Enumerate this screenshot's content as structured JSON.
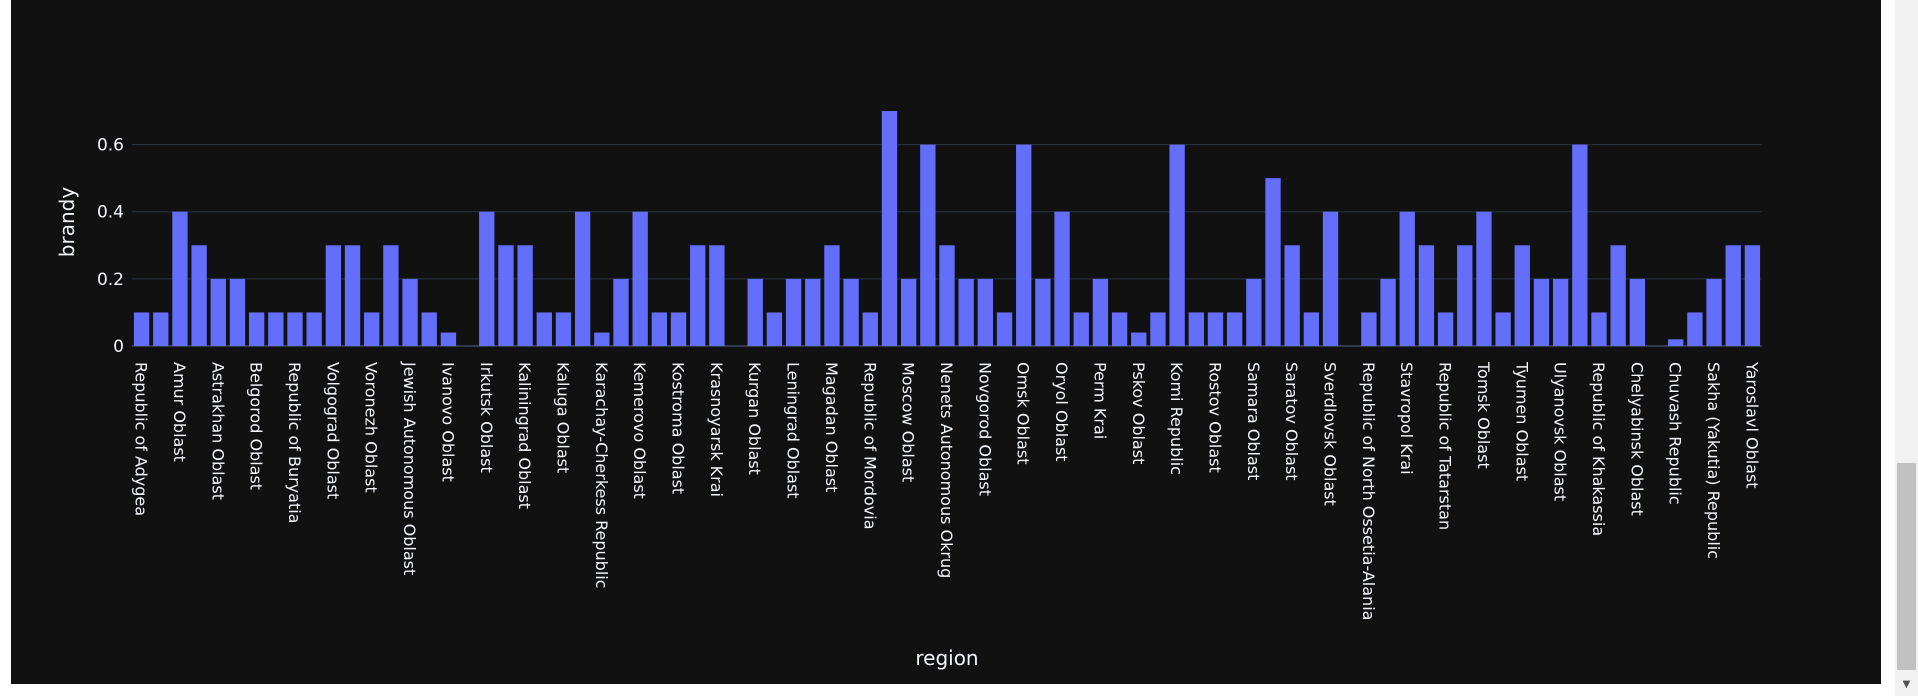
{
  "chart_data": {
    "type": "bar",
    "xlabel": "region",
    "ylabel": "brandy",
    "ylim": [
      0,
      0.7
    ],
    "yticks": [
      0,
      0.2,
      0.4,
      0.6
    ],
    "ytick_labels": [
      "0",
      "0.2",
      "0.4",
      "0.6"
    ],
    "grid": true,
    "bar_color": "#636efa",
    "background_color": "#111111",
    "categories": [
      "Republic of Adygea",
      "",
      "Amur Oblast",
      "",
      "Astrakhan Oblast",
      "",
      "Belgorod Oblast",
      "",
      "Republic of Buryatia",
      "",
      "Volgograd Oblast",
      "",
      "Voronezh Oblast",
      "",
      "Jewish Autonomous Oblast",
      "",
      "Ivanovo Oblast",
      "",
      "Irkutsk Oblast",
      "",
      "Kaliningrad Oblast",
      "",
      "Kaluga Oblast",
      "",
      "Karachay-Cherkess Republic",
      "",
      "Kemerovo Oblast",
      "",
      "Kostroma Oblast",
      "",
      "Krasnoyarsk Krai",
      "",
      "Kurgan Oblast",
      "",
      "Leningrad Oblast",
      "",
      "Magadan Oblast",
      "",
      "Republic of Mordovia",
      "",
      "Moscow Oblast",
      "",
      "Nenets Autonomous Okrug",
      "",
      "Novgorod Oblast",
      "",
      "Omsk Oblast",
      "",
      "Oryol Oblast",
      "",
      "Perm Krai",
      "",
      "Pskov Oblast",
      "",
      "Komi Republic",
      "",
      "Rostov Oblast",
      "",
      "Samara Oblast",
      "",
      "Saratov Oblast",
      "",
      "Sverdlovsk Oblast",
      "",
      "Republic of North Ossetia-Alania",
      "",
      "Stavropol Krai",
      "",
      "Republic of Tatarstan",
      "",
      "Tomsk Oblast",
      "",
      "Tyumen Oblast",
      "",
      "Ulyanovsk Oblast",
      "",
      "Republic of Khakassia",
      "",
      "Chelyabinsk Oblast",
      "",
      "Chuvash Republic",
      "",
      "Sakha (Yakutia) Republic",
      "",
      "Yaroslavl Oblast"
    ],
    "values": [
      0.1,
      0.1,
      0.4,
      0.3,
      0.2,
      0.2,
      0.1,
      0.1,
      0.1,
      0.1,
      0.3,
      0.3,
      0.1,
      0.3,
      0.2,
      0.1,
      0.04,
      0.0,
      0.4,
      0.3,
      0.3,
      0.1,
      0.1,
      0.4,
      0.04,
      0.2,
      0.4,
      0.1,
      0.1,
      0.3,
      0.3,
      0.0,
      0.2,
      0.1,
      0.2,
      0.2,
      0.3,
      0.2,
      0.1,
      0.7,
      0.2,
      0.6,
      0.3,
      0.2,
      0.2,
      0.1,
      0.6,
      0.2,
      0.4,
      0.1,
      0.2,
      0.1,
      0.04,
      0.1,
      0.6,
      0.1,
      0.1,
      0.1,
      0.2,
      0.5,
      0.3,
      0.1,
      0.4,
      0.0,
      0.1,
      0.2,
      0.4,
      0.3,
      0.1,
      0.3,
      0.4,
      0.1,
      0.3,
      0.2,
      0.2,
      0.6,
      0.1,
      0.3,
      0.2,
      0.0,
      0.02,
      0.1,
      0.2,
      0.3,
      0.3
    ]
  }
}
